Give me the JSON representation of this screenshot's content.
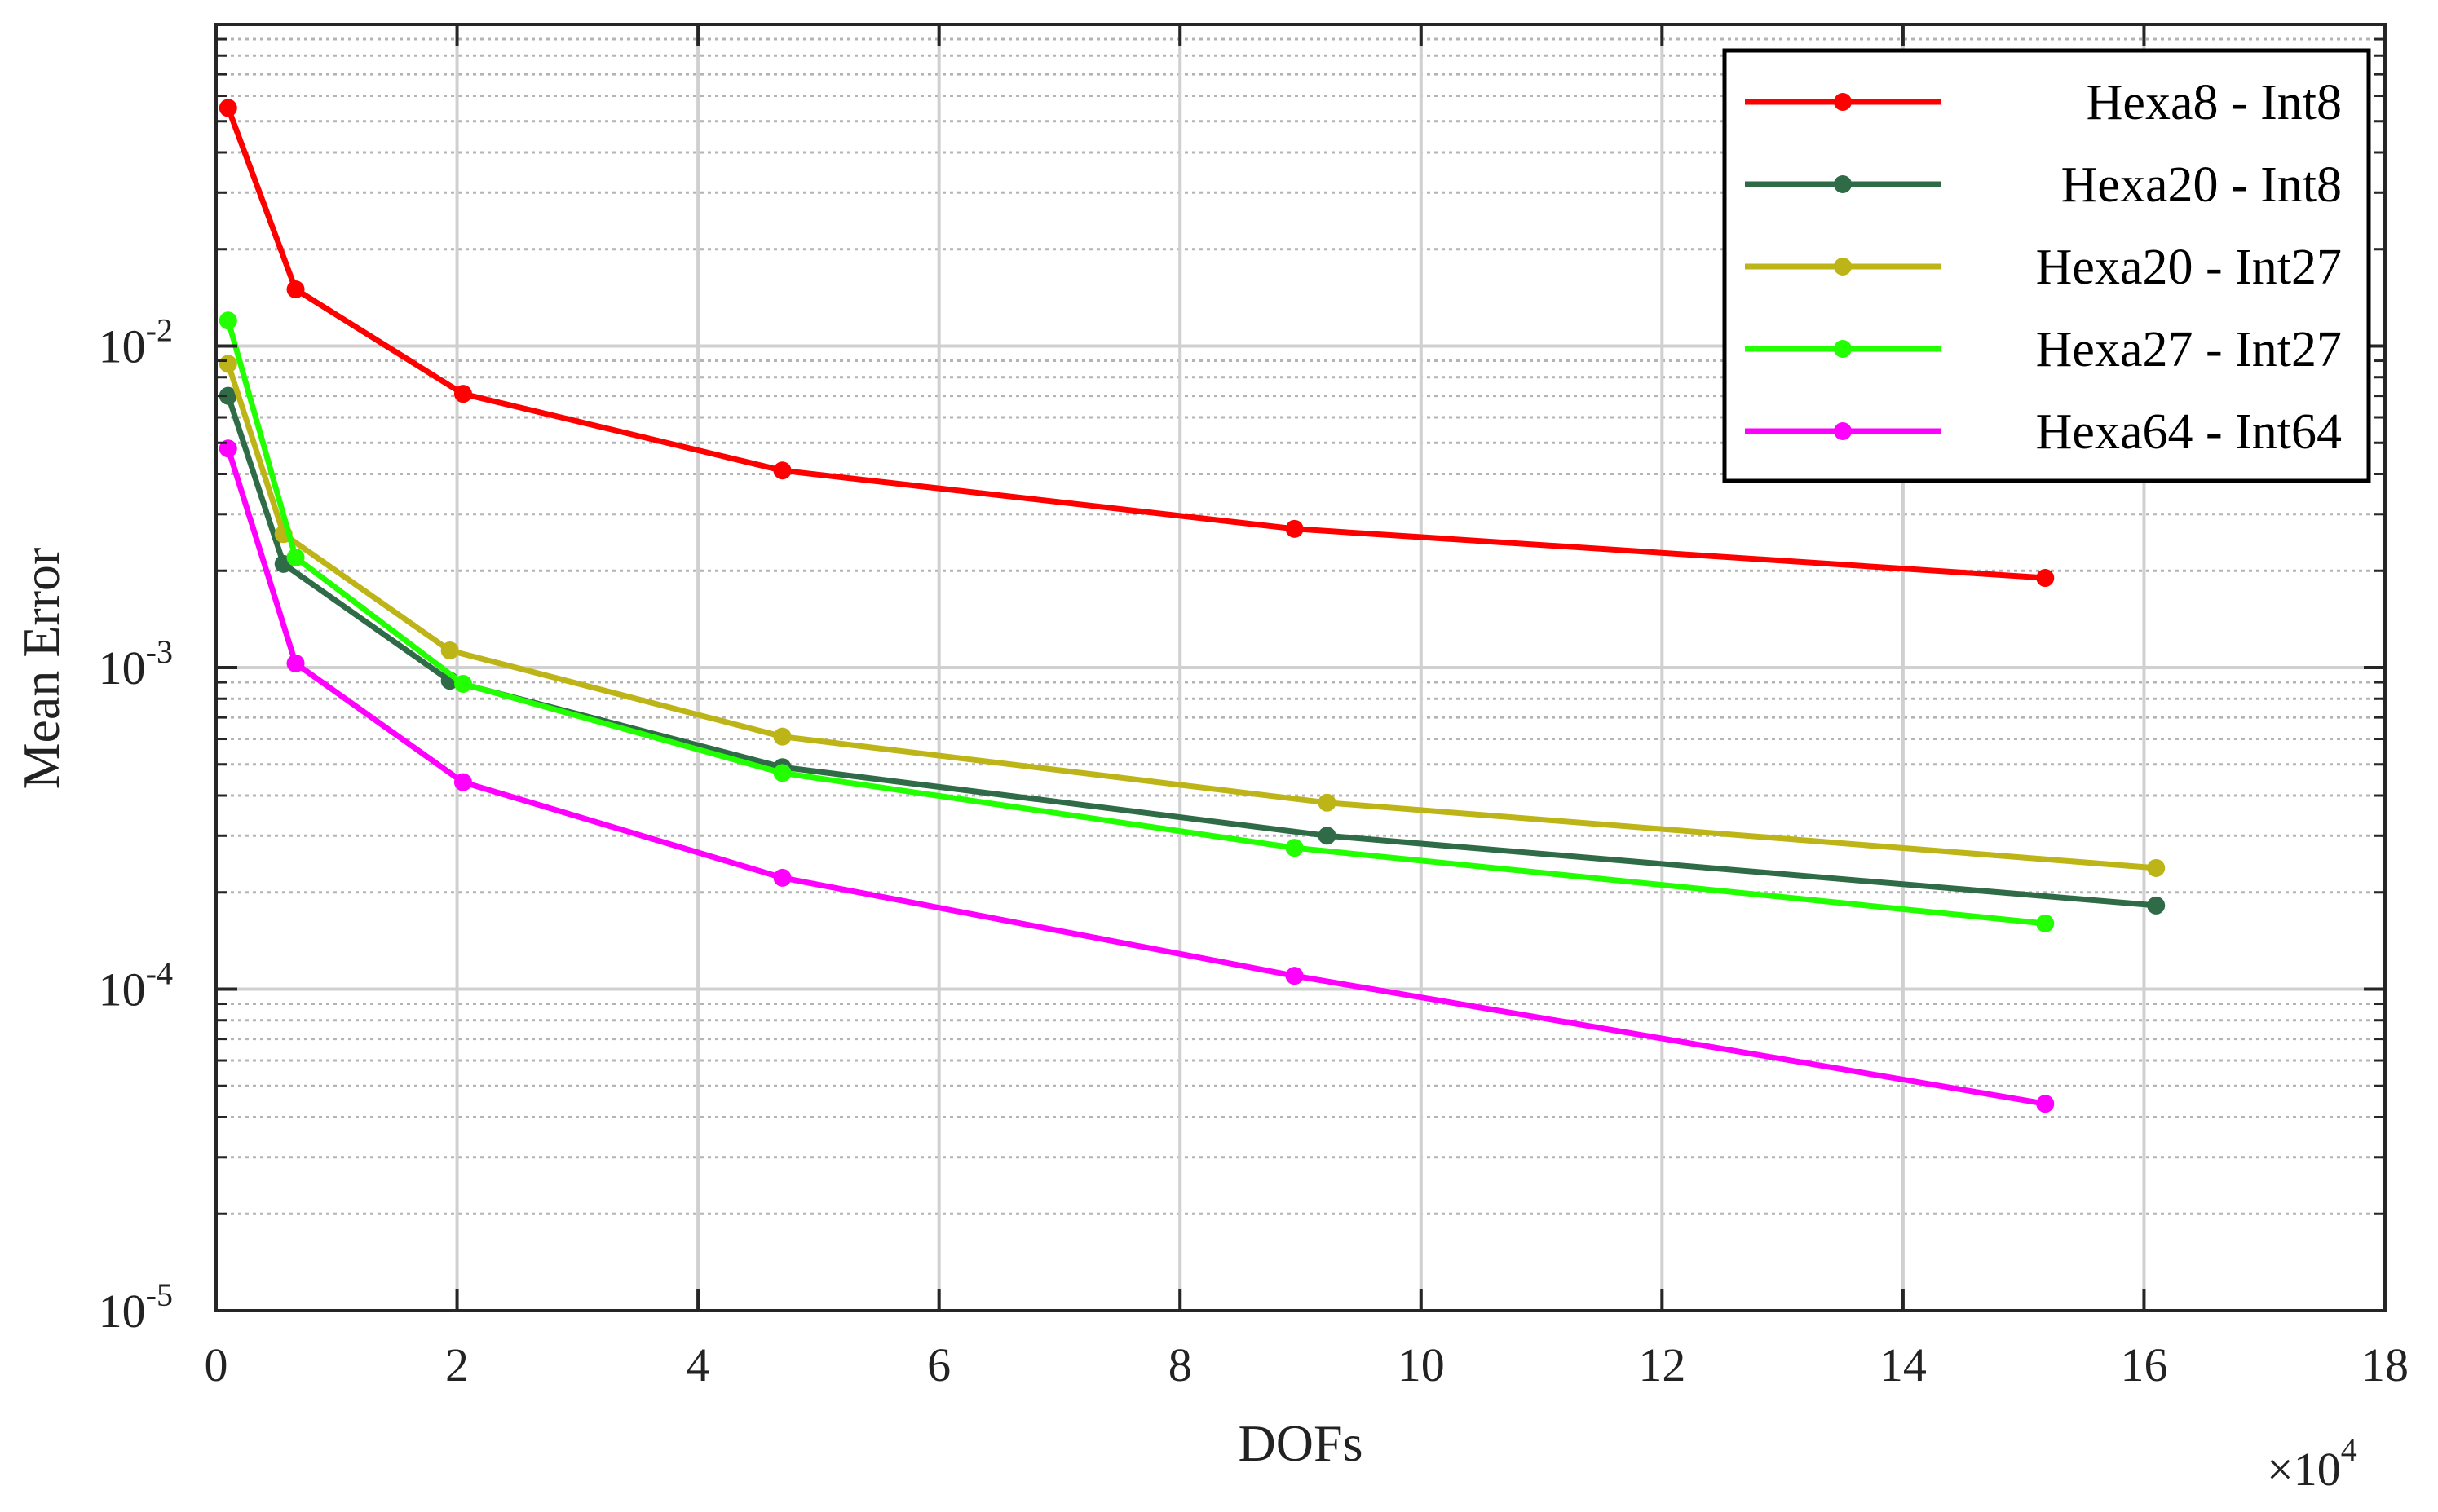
{
  "chart_data": {
    "type": "line",
    "xlabel": "DOFs",
    "ylabel": "Mean Error",
    "x_multiplier_label": "×10",
    "x_multiplier_exp": "4",
    "xlim": [
      0,
      18
    ],
    "ylim": [
      1e-05,
      0.1
    ],
    "yscale": "log",
    "grid": true,
    "legend_position": "top-right",
    "x_ticks": [
      "0",
      "2",
      "4",
      "6",
      "8",
      "10",
      "12",
      "14",
      "16",
      "18"
    ],
    "y_ticks": [
      {
        "base": "10",
        "exp": "-5",
        "value": 1e-05
      },
      {
        "base": "10",
        "exp": "-4",
        "value": 0.0001
      },
      {
        "base": "10",
        "exp": "-3",
        "value": 0.001
      },
      {
        "base": "10",
        "exp": "-2",
        "value": 0.01
      }
    ],
    "series": [
      {
        "name": "Hexa8 - Int8",
        "color": "#ff0000",
        "x": [
          0.1,
          0.66,
          2.05,
          4.7,
          8.95,
          15.18
        ],
        "y": [
          0.055,
          0.015,
          0.0071,
          0.0041,
          0.0027,
          0.0019
        ]
      },
      {
        "name": "Hexa20 - Int8",
        "color": "#2e6b46",
        "x": [
          0.1,
          0.56,
          1.94,
          4.7,
          9.22,
          16.1
        ],
        "y": [
          0.007,
          0.0021,
          0.00091,
          0.00049,
          0.0003,
          0.000182
        ]
      },
      {
        "name": "Hexa20 - Int27",
        "color": "#bdb517",
        "x": [
          0.1,
          0.56,
          1.94,
          4.7,
          9.22,
          16.1
        ],
        "y": [
          0.0088,
          0.0026,
          0.00113,
          0.00061,
          0.00038,
          0.000238
        ]
      },
      {
        "name": "Hexa27 - Int27",
        "color": "#22ff00",
        "x": [
          0.1,
          0.66,
          2.05,
          4.7,
          8.95,
          15.18
        ],
        "y": [
          0.012,
          0.0022,
          0.00089,
          0.00047,
          0.000275,
          0.00016
        ]
      },
      {
        "name": "Hexa64 - Int64",
        "color": "#ff00ff",
        "x": [
          0.1,
          0.66,
          2.05,
          4.7,
          8.95,
          15.18
        ],
        "y": [
          0.0048,
          0.00103,
          0.00044,
          0.000222,
          0.00011,
          4.4e-05
        ]
      }
    ]
  }
}
